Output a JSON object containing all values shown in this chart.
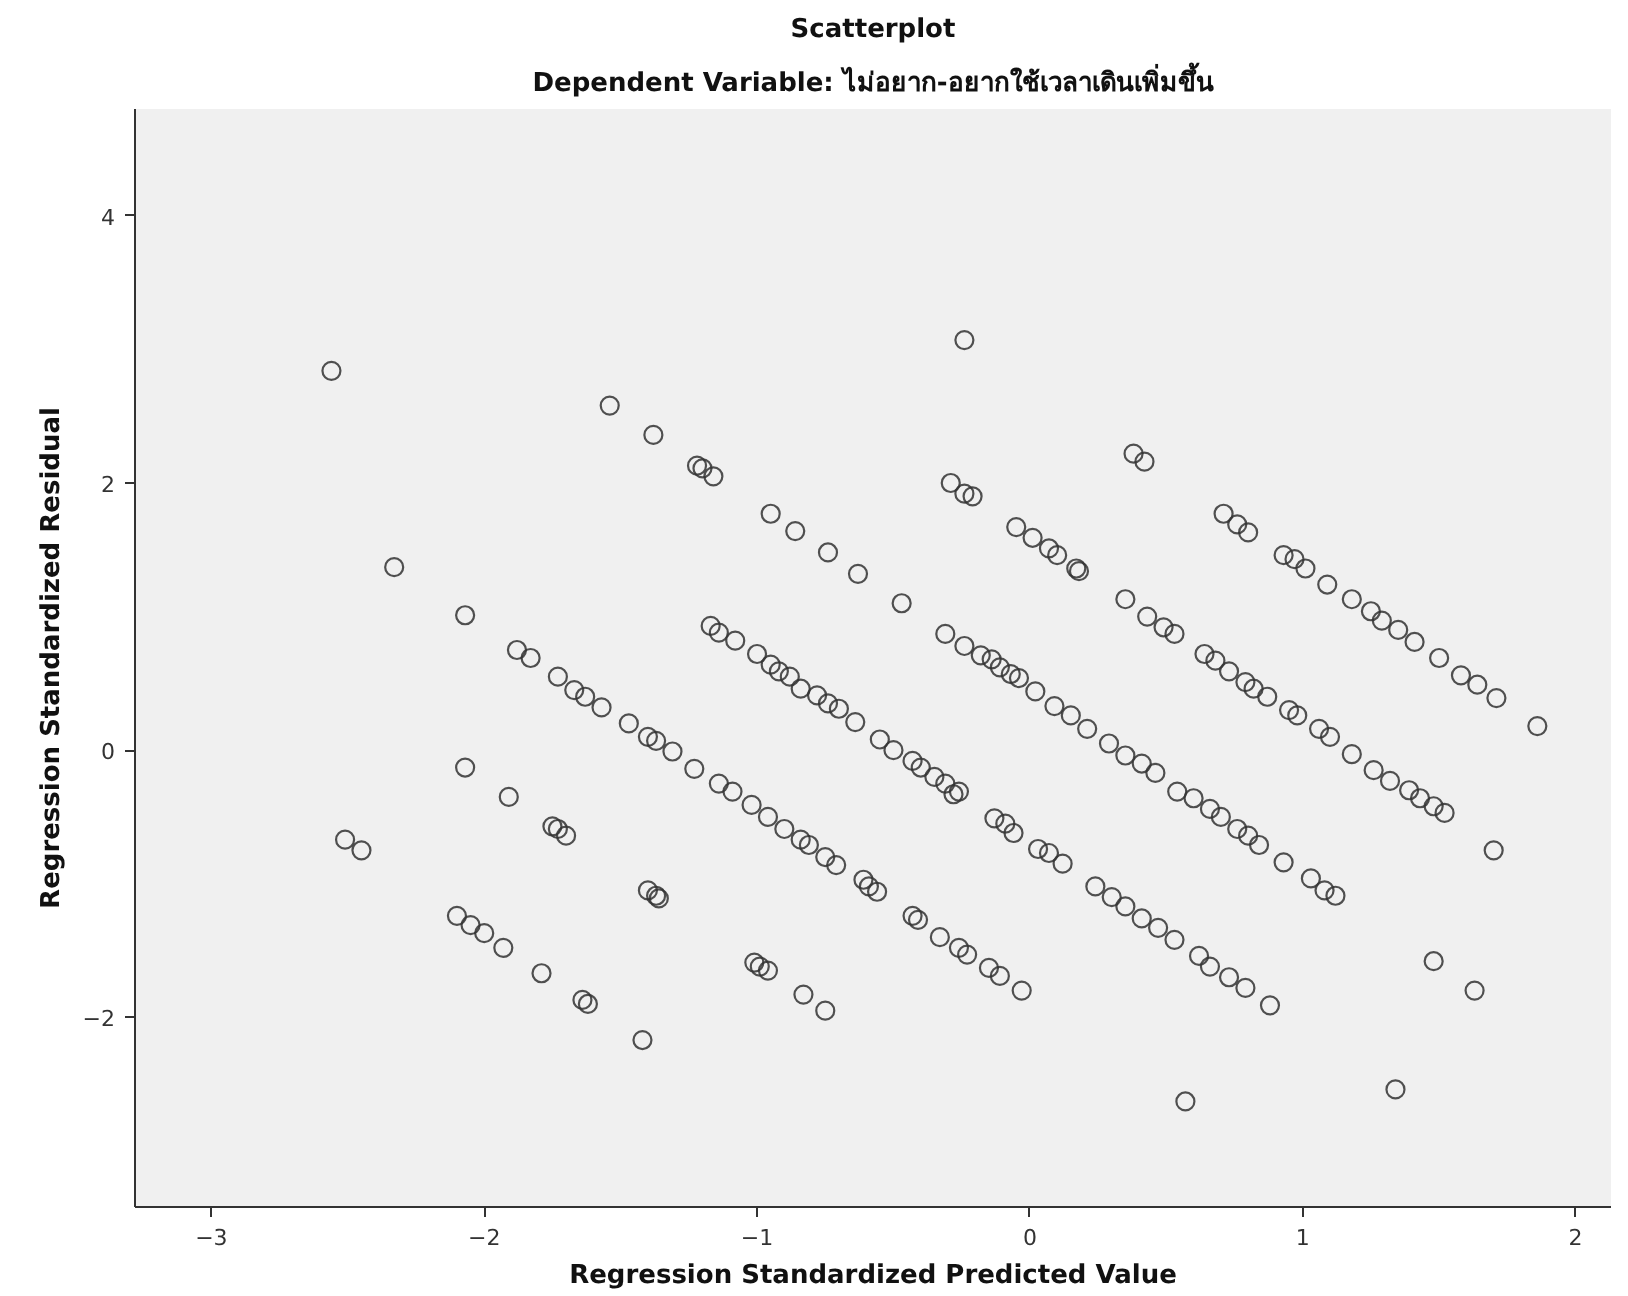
{
  "chart_data": {
    "type": "scatter",
    "title": "Scatterplot",
    "subtitle": "Dependent Variable: ไม่อยาก-อยากใช้เวลาเดินเพิ่มขึ้น",
    "xlabel": "Regression Standardized Predicted Value",
    "ylabel": "Regression Standardized Residual",
    "xlim": [
      -3.28,
      2.13
    ],
    "ylim": [
      -3.42,
      4.8
    ],
    "xticks": [
      -3,
      -2,
      -1,
      0,
      1,
      2
    ],
    "yticks": [
      -2,
      0,
      2,
      4
    ],
    "grid": false,
    "marker": "circle",
    "series": [
      {
        "color": "#333333",
        "x": [
          -2.56,
          -1.54,
          -2.33,
          -2.07,
          -1.88,
          -1.83,
          -1.73,
          -1.67,
          -1.63,
          -1.57,
          -1.47,
          -2.07,
          -1.91,
          -1.75,
          -1.73,
          -1.7,
          -2.51,
          -2.45,
          -2.1,
          -2.05,
          -2.0,
          -1.93,
          -1.79,
          -1.64,
          -1.62,
          -1.4,
          -1.37,
          -1.36,
          -1.42,
          -1.01,
          -0.99,
          -0.96,
          -0.83,
          -0.75,
          -1.4,
          -1.37,
          -1.31,
          -1.23,
          -1.14,
          -1.09,
          -1.02,
          -0.96,
          -0.9,
          -0.84,
          -0.81,
          -0.75,
          -0.71,
          -0.61,
          -0.59,
          -0.56,
          -0.43,
          -0.41,
          -0.33,
          -0.26,
          -0.23,
          -0.15,
          -0.11,
          -0.03,
          -0.28,
          -0.13,
          -0.09,
          -0.06,
          0.03,
          0.07,
          0.12,
          0.24,
          0.54,
          0.6,
          0.66,
          0.7,
          0.76,
          0.8,
          0.84,
          0.93,
          1.03,
          1.08,
          1.12,
          1.26,
          1.32,
          1.39,
          1.43,
          1.48,
          1.52,
          1.7,
          0.3,
          0.35,
          0.41,
          0.47,
          0.53,
          0.62,
          0.66,
          0.73,
          0.79,
          0.88,
          1.48,
          1.63,
          0.57,
          1.34,
          -1.38,
          -1.22,
          -1.2,
          -1.16,
          -0.95,
          -0.86,
          -0.74,
          -0.63,
          -0.47,
          -0.24,
          -0.29,
          -0.24,
          -0.21,
          -0.05,
          0.01,
          0.07,
          0.1,
          0.17,
          0.18,
          -1.17,
          -1.14,
          -1.08,
          -1.0,
          -0.95,
          -0.92,
          -0.88,
          -0.84,
          -0.78,
          -0.74,
          -0.7,
          -0.64,
          -0.55,
          -0.5,
          -0.43,
          -0.4,
          -0.35,
          -0.31,
          -0.26,
          -0.31,
          -0.24,
          -0.18,
          -0.14,
          -0.11,
          -0.07,
          -0.04,
          0.02,
          0.09,
          0.15,
          0.21,
          0.38,
          0.42,
          0.71,
          0.76,
          0.8,
          0.93,
          0.97,
          1.01,
          1.09,
          1.18,
          1.25,
          1.29,
          1.35,
          1.41,
          1.5,
          1.58,
          1.64,
          1.71,
          1.86,
          0.35,
          0.43,
          0.49,
          0.53,
          0.64,
          0.68,
          0.73,
          0.79,
          0.82,
          0.87,
          0.95,
          0.98,
          1.06,
          1.1,
          1.18,
          0.29,
          0.35,
          0.41,
          0.46
        ],
        "values": [
          2.84,
          2.58,
          1.37,
          1.01,
          0.75,
          0.69,
          0.55,
          0.45,
          0.4,
          0.32,
          0.2,
          -0.13,
          -0.35,
          -0.57,
          -0.59,
          -0.64,
          -0.67,
          -0.75,
          -1.24,
          -1.31,
          -1.37,
          -1.48,
          -1.67,
          -1.87,
          -1.9,
          -1.05,
          -1.09,
          -1.11,
          -2.17,
          -1.59,
          -1.62,
          -1.65,
          -1.83,
          -1.95,
          0.1,
          0.07,
          -0.01,
          -0.14,
          -0.25,
          -0.31,
          -0.41,
          -0.5,
          -0.59,
          -0.67,
          -0.71,
          -0.8,
          -0.86,
          -0.97,
          -1.02,
          -1.06,
          -1.24,
          -1.27,
          -1.4,
          -1.48,
          -1.53,
          -1.63,
          -1.69,
          -1.8,
          -0.33,
          -0.51,
          -0.55,
          -0.62,
          -0.74,
          -0.77,
          -0.85,
          -1.02,
          -0.31,
          -0.36,
          -0.44,
          -0.5,
          -0.59,
          -0.64,
          -0.71,
          -0.84,
          -0.96,
          -1.05,
          -1.09,
          -0.15,
          -0.23,
          -0.3,
          -0.36,
          -0.42,
          -0.47,
          -0.75,
          -1.1,
          -1.17,
          -1.26,
          -1.33,
          -1.42,
          -1.54,
          -1.62,
          -1.7,
          -1.78,
          -1.91,
          -1.58,
          -1.8,
          -2.63,
          -2.54,
          2.36,
          2.13,
          2.11,
          2.05,
          1.77,
          1.64,
          1.48,
          1.32,
          1.1,
          3.07,
          2.0,
          1.92,
          1.9,
          1.67,
          1.59,
          1.51,
          1.46,
          1.36,
          1.34,
          0.93,
          0.88,
          0.82,
          0.72,
          0.64,
          0.59,
          0.55,
          0.46,
          0.41,
          0.35,
          0.31,
          0.21,
          0.08,
          0.0,
          -0.08,
          -0.13,
          -0.2,
          -0.25,
          -0.31,
          0.87,
          0.78,
          0.71,
          0.68,
          0.62,
          0.57,
          0.54,
          0.44,
          0.33,
          0.26,
          0.16,
          2.22,
          2.16,
          1.77,
          1.69,
          1.63,
          1.46,
          1.43,
          1.36,
          1.24,
          1.13,
          1.04,
          0.97,
          0.9,
          0.81,
          0.69,
          0.56,
          0.49,
          0.39,
          0.18,
          1.13,
          1.0,
          0.92,
          0.87,
          0.72,
          0.67,
          0.59,
          0.51,
          0.46,
          0.4,
          0.3,
          0.26,
          0.16,
          0.1,
          -0.03,
          0.05,
          -0.04,
          -0.1,
          -0.17
        ]
      }
    ]
  }
}
